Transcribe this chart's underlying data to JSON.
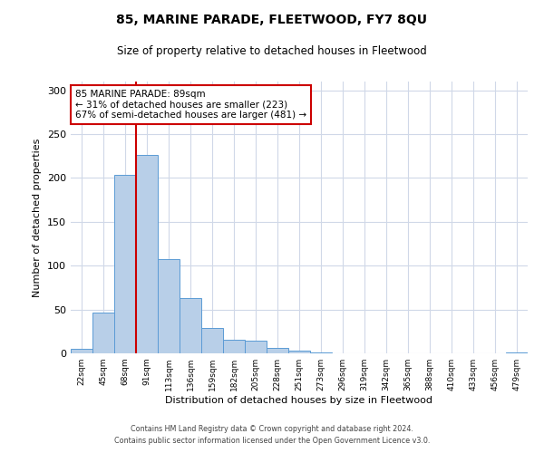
{
  "title": "85, MARINE PARADE, FLEETWOOD, FY7 8QU",
  "subtitle": "Size of property relative to detached houses in Fleetwood",
  "xlabel": "Distribution of detached houses by size in Fleetwood",
  "ylabel": "Number of detached properties",
  "bar_labels": [
    "22sqm",
    "45sqm",
    "68sqm",
    "91sqm",
    "113sqm",
    "136sqm",
    "159sqm",
    "182sqm",
    "205sqm",
    "228sqm",
    "251sqm",
    "273sqm",
    "296sqm",
    "319sqm",
    "342sqm",
    "365sqm",
    "388sqm",
    "410sqm",
    "433sqm",
    "456sqm",
    "479sqm"
  ],
  "bar_values": [
    5,
    46,
    204,
    226,
    107,
    63,
    29,
    16,
    14,
    6,
    3,
    1,
    0,
    0,
    0,
    0,
    0,
    0,
    0,
    0,
    1
  ],
  "bar_color": "#b8cfe8",
  "bar_edge_color": "#5b9bd5",
  "vline_color": "#cc0000",
  "annotation_line1": "85 MARINE PARADE: 89sqm",
  "annotation_line2": "← 31% of detached houses are smaller (223)",
  "annotation_line3": "67% of semi-detached houses are larger (481) →",
  "annotation_box_color": "#ffffff",
  "annotation_box_edge_color": "#cc0000",
  "ylim": [
    0,
    310
  ],
  "yticks": [
    0,
    50,
    100,
    150,
    200,
    250,
    300
  ],
  "footer1": "Contains HM Land Registry data © Crown copyright and database right 2024.",
  "footer2": "Contains public sector information licensed under the Open Government Licence v3.0.",
  "bg_color": "#ffffff",
  "grid_color": "#d0d8e8"
}
